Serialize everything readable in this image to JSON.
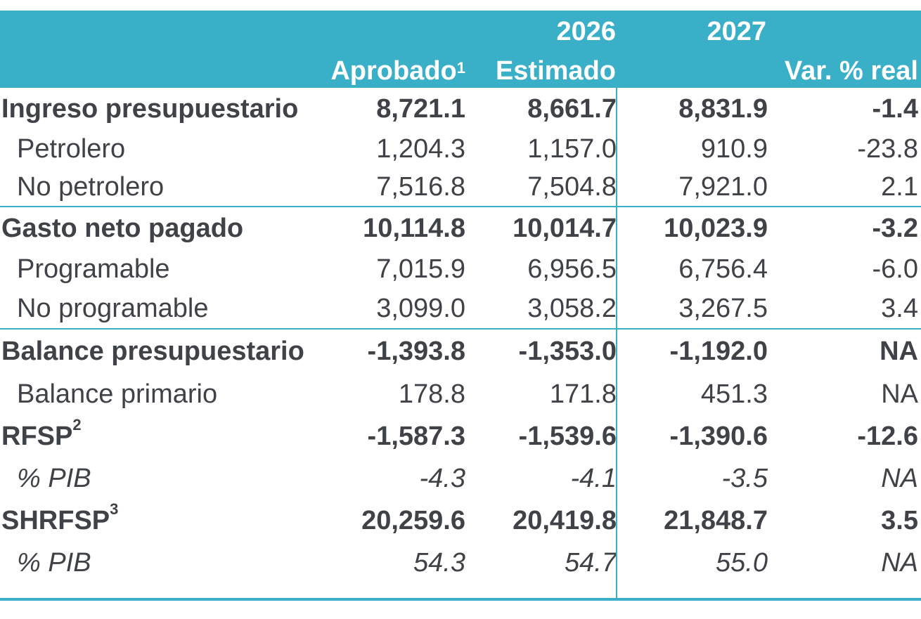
{
  "header": {
    "year_2026": "2026",
    "year_2027": "2027",
    "aprobado": "Aprobado",
    "aprobado_note": "1",
    "estimado": "Estimado",
    "var_real": "Var. % real"
  },
  "rows": [
    {
      "label": "Ingreso presupuestario",
      "note": "",
      "v1": "8,721.1",
      "v2": "8,661.7",
      "v3": "8,831.9",
      "v4": "-1.4"
    },
    {
      "label": "Petrolero",
      "note": "",
      "v1": "1,204.3",
      "v2": "1,157.0",
      "v3": "910.9",
      "v4": "-23.8"
    },
    {
      "label": "No petrolero",
      "note": "",
      "v1": "7,516.8",
      "v2": "7,504.8",
      "v3": "7,921.0",
      "v4": "2.1"
    },
    {
      "label": "Gasto neto pagado",
      "note": "",
      "v1": "10,114.8",
      "v2": "10,014.7",
      "v3": "10,023.9",
      "v4": "-3.2"
    },
    {
      "label": "Programable",
      "note": "",
      "v1": "7,015.9",
      "v2": "6,956.5",
      "v3": "6,756.4",
      "v4": "-6.0"
    },
    {
      "label": "No programable",
      "note": "",
      "v1": "3,099.0",
      "v2": "3,058.2",
      "v3": "3,267.5",
      "v4": "3.4"
    },
    {
      "label": "Balance presupuestario",
      "note": "",
      "v1": "-1,393.8",
      "v2": "-1,353.0",
      "v3": "-1,192.0",
      "v4": "NA"
    },
    {
      "label": "Balance primario",
      "note": "",
      "v1": "178.8",
      "v2": "171.8",
      "v3": "451.3",
      "v4": "NA"
    },
    {
      "label": "RFSP",
      "note": "2",
      "v1": "-1,587.3",
      "v2": "-1,539.6",
      "v3": "-1,390.6",
      "v4": "-12.6"
    },
    {
      "label": "% PIB",
      "note": "",
      "v1": "-4.3",
      "v2": "-4.1",
      "v3": "-3.5",
      "v4": "NA"
    },
    {
      "label": "SHRFSP",
      "note": "3",
      "v1": "20,259.6",
      "v2": "20,419.8",
      "v3": "21,848.7",
      "v4": "3.5"
    },
    {
      "label": "% PIB",
      "note": "",
      "v1": "54.3",
      "v2": "54.7",
      "v3": "55.0",
      "v4": "NA"
    }
  ],
  "colors": {
    "accent": "#3aafc8",
    "text": "#3f4247",
    "header_text": "#ffffff"
  }
}
